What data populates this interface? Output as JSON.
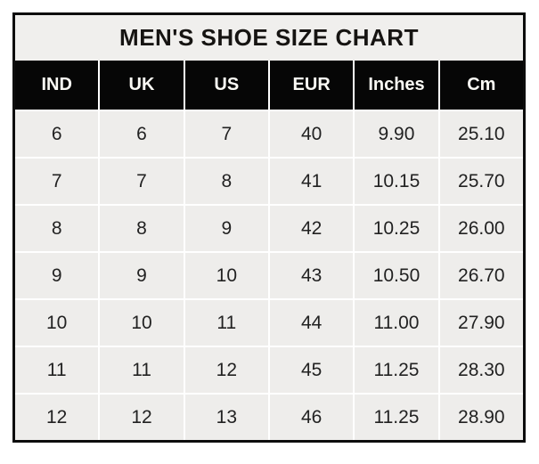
{
  "chart_data": {
    "type": "table",
    "title": "MEN'S SHOE SIZE CHART",
    "columns": [
      "IND",
      "UK",
      "US",
      "EUR",
      "Inches",
      "Cm"
    ],
    "rows": [
      [
        "6",
        "6",
        "7",
        "40",
        "9.90",
        "25.10"
      ],
      [
        "7",
        "7",
        "8",
        "41",
        "10.15",
        "25.70"
      ],
      [
        "8",
        "8",
        "9",
        "42",
        "10.25",
        "26.00"
      ],
      [
        "9",
        "9",
        "10",
        "43",
        "10.50",
        "26.70"
      ],
      [
        "10",
        "10",
        "11",
        "44",
        "11.00",
        "27.90"
      ],
      [
        "11",
        "11",
        "12",
        "45",
        "11.25",
        "28.30"
      ],
      [
        "12",
        "12",
        "13",
        "46",
        "11.25",
        "28.90"
      ]
    ]
  },
  "colors": {
    "outer_border": "#0c0c0c",
    "title_background": "#f0efed",
    "title_text": "#161412",
    "header_background": "#060606",
    "header_text": "#faf9f4",
    "cell_background": "#eeedeb",
    "cell_text": "#222222",
    "grid_line": "#ffffff"
  }
}
